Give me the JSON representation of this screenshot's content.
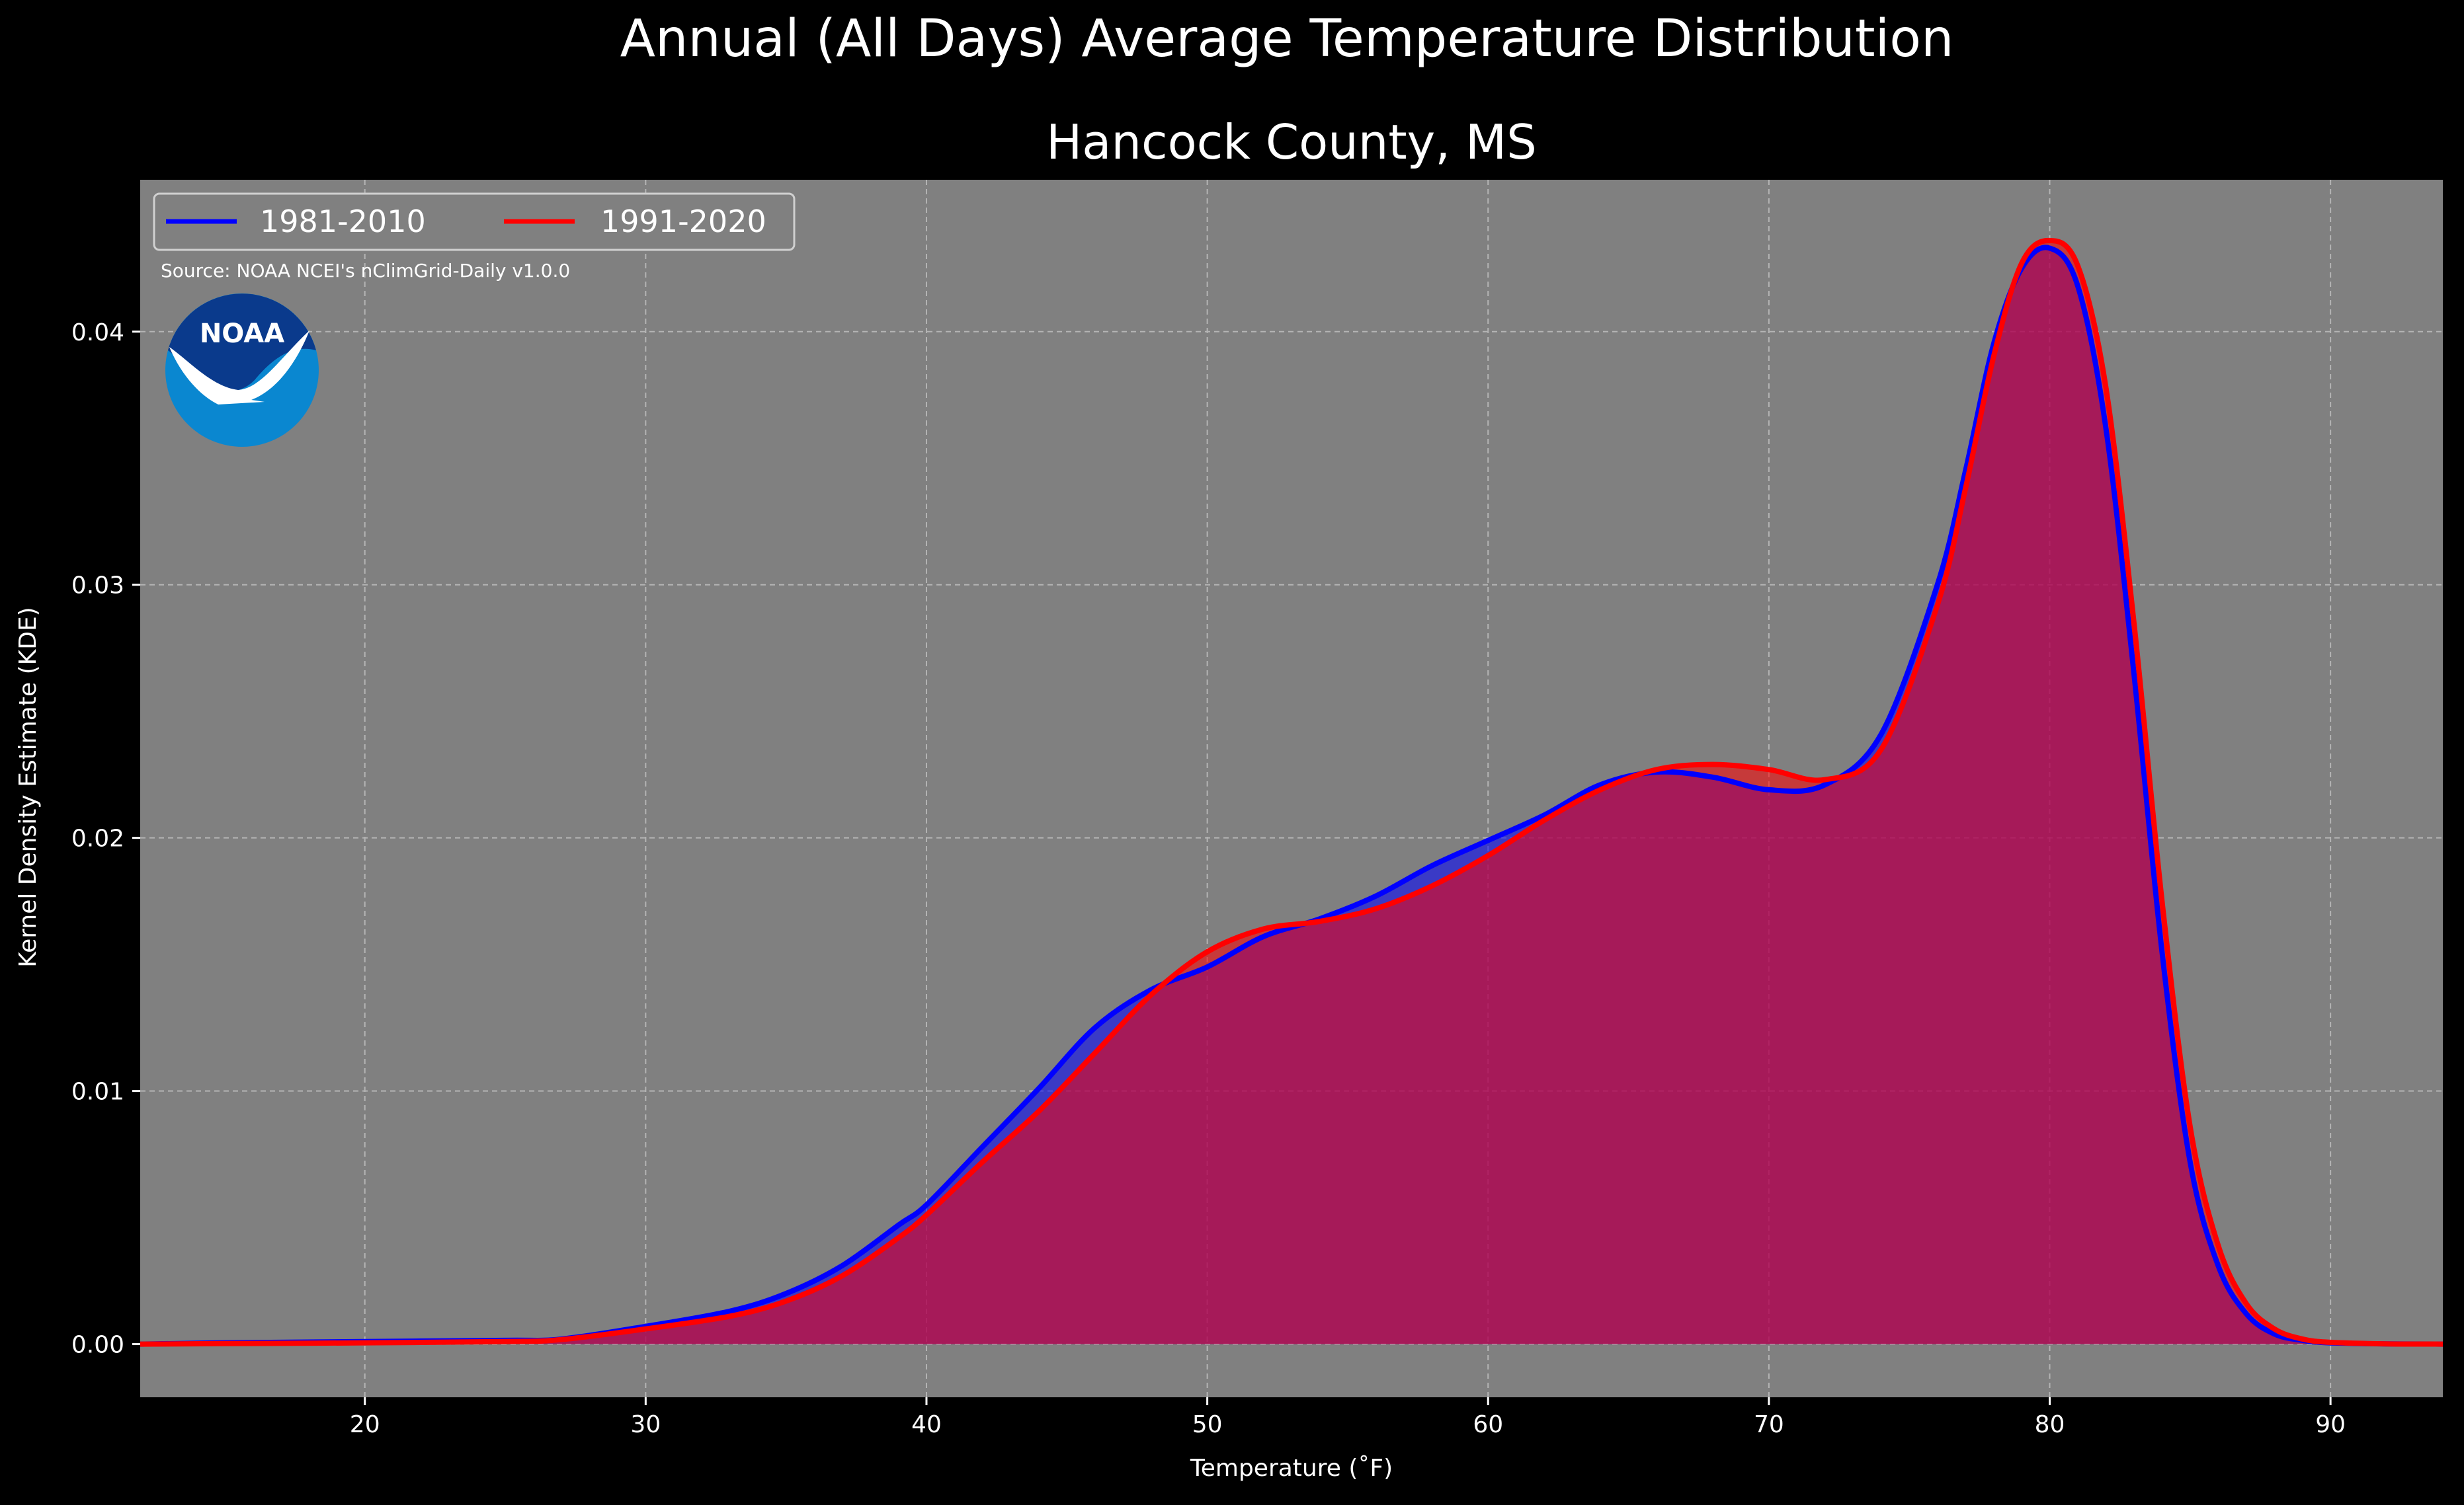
{
  "colors": {
    "background": "#000000",
    "plot_background": "#808080",
    "text": "#ffffff",
    "series_1981_2010": "#0000ff",
    "series_1991_2020": "#ff0000",
    "overlap_fill": "#9e1e5a",
    "noaa_blue_dark": "#0a3a8c",
    "noaa_blue_light": "#0a87d0"
  },
  "chart_data": {
    "type": "area",
    "title": "Annual (All Days) Average Temperature Distribution",
    "subtitle": "Hancock County, MS",
    "xlabel": "Temperature (˚F)",
    "ylabel": "Kernel Density Estimate (KDE)",
    "source_note": "Source: NOAA NCEI's nClimGrid-Daily v1.0.0",
    "logo_text": "NOAA",
    "xlim": [
      12,
      94
    ],
    "ylim": [
      -0.0021,
      0.046
    ],
    "x_ticks": [
      20,
      30,
      40,
      50,
      60,
      70,
      80,
      90
    ],
    "y_ticks": [
      0.0,
      0.01,
      0.02,
      0.03,
      0.04
    ],
    "y_tick_labels": [
      "0.00",
      "0.01",
      "0.02",
      "0.03",
      "0.04"
    ],
    "grid": true,
    "legend_position": "top-left",
    "series": [
      {
        "name": "1981-2010",
        "color": "#0000ff",
        "x": [
          12,
          15,
          20,
          25,
          27,
          30,
          33,
          35,
          37,
          39,
          40,
          42,
          44,
          46,
          48,
          50,
          52,
          54,
          56,
          58,
          60,
          62,
          64,
          66,
          68,
          70,
          72,
          74,
          76,
          77,
          78,
          79,
          80,
          81,
          82,
          83,
          84,
          85,
          86,
          87,
          88,
          89,
          90,
          92,
          94
        ],
        "y": [
          0.0,
          5e-05,
          0.0001,
          0.00015,
          0.0002,
          0.0007,
          0.0013,
          0.002,
          0.0031,
          0.0047,
          0.0055,
          0.0078,
          0.0101,
          0.0125,
          0.014,
          0.0149,
          0.0161,
          0.0168,
          0.0177,
          0.0189,
          0.0199,
          0.0209,
          0.0221,
          0.0226,
          0.0224,
          0.0219,
          0.0221,
          0.0241,
          0.03,
          0.0345,
          0.0395,
          0.0425,
          0.0433,
          0.0418,
          0.0362,
          0.0265,
          0.0155,
          0.0072,
          0.0031,
          0.0012,
          0.0004,
          0.00015,
          5e-05,
          1e-05,
          0.0
        ]
      },
      {
        "name": "1991-2020",
        "color": "#ff0000",
        "x": [
          12,
          15,
          20,
          25,
          27,
          30,
          33,
          35,
          37,
          39,
          40,
          42,
          44,
          46,
          48,
          50,
          52,
          54,
          56,
          58,
          60,
          62,
          64,
          66,
          68,
          70,
          72,
          74,
          76,
          77,
          78,
          79,
          80,
          81,
          82,
          83,
          84,
          85,
          86,
          87,
          88,
          89,
          90,
          92,
          94
        ],
        "y": [
          0.0,
          2e-05,
          5e-05,
          0.0001,
          0.00018,
          0.0006,
          0.0011,
          0.0017,
          0.0027,
          0.0042,
          0.0051,
          0.0072,
          0.0092,
          0.0115,
          0.0138,
          0.0155,
          0.0164,
          0.0167,
          0.0172,
          0.0181,
          0.0193,
          0.0207,
          0.0219,
          0.0227,
          0.0229,
          0.0227,
          0.0223,
          0.0235,
          0.0292,
          0.0338,
          0.039,
          0.0427,
          0.0436,
          0.0426,
          0.0378,
          0.0285,
          0.0175,
          0.0086,
          0.0039,
          0.0016,
          0.0006,
          0.0002,
          7e-05,
          1e-05,
          0.0
        ]
      }
    ]
  }
}
